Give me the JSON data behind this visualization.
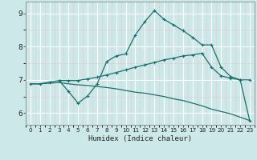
{
  "title": "",
  "xlabel": "Humidex (Indice chaleur)",
  "bg_color": "#cce8e8",
  "line_color": "#1a7070",
  "grid_color": "#b0d0d0",
  "xlim": [
    -0.5,
    23.5
  ],
  "ylim": [
    5.65,
    9.35
  ],
  "yticks": [
    6,
    7,
    8,
    9
  ],
  "xticks": [
    0,
    1,
    2,
    3,
    4,
    5,
    6,
    7,
    8,
    9,
    10,
    11,
    12,
    13,
    14,
    15,
    16,
    17,
    18,
    19,
    20,
    21,
    22,
    23
  ],
  "line1_x": [
    0,
    1,
    2,
    3,
    4,
    5,
    6,
    7,
    8,
    9,
    10,
    11,
    12,
    13,
    14,
    15,
    16,
    17,
    18,
    19,
    20,
    21,
    22,
    23
  ],
  "line1_y": [
    6.88,
    6.88,
    6.9,
    6.92,
    6.88,
    6.85,
    6.83,
    6.8,
    6.77,
    6.73,
    6.68,
    6.63,
    6.6,
    6.55,
    6.5,
    6.43,
    6.38,
    6.3,
    6.22,
    6.12,
    6.05,
    5.98,
    5.88,
    5.78
  ],
  "line2_x": [
    0,
    1,
    2,
    3,
    4,
    5,
    6,
    7,
    8,
    9,
    10,
    11,
    12,
    13,
    14,
    15,
    16,
    17,
    18,
    19,
    20,
    21,
    22,
    23
  ],
  "line2_y": [
    6.88,
    6.88,
    6.93,
    6.98,
    6.98,
    6.98,
    7.03,
    7.08,
    7.15,
    7.22,
    7.3,
    7.38,
    7.45,
    7.52,
    7.6,
    7.65,
    7.72,
    7.75,
    7.8,
    7.38,
    7.12,
    7.05,
    7.0,
    7.0
  ],
  "line3_x": [
    3,
    4,
    5,
    6,
    7,
    8,
    9,
    10,
    11,
    12,
    13,
    14,
    15,
    16,
    17,
    18,
    19,
    20,
    21,
    22,
    23
  ],
  "line3_y": [
    6.98,
    6.65,
    6.3,
    6.52,
    6.88,
    7.55,
    7.72,
    7.78,
    8.35,
    8.75,
    9.08,
    8.82,
    8.65,
    8.48,
    8.28,
    8.05,
    8.05,
    7.38,
    7.1,
    7.0,
    5.78
  ]
}
